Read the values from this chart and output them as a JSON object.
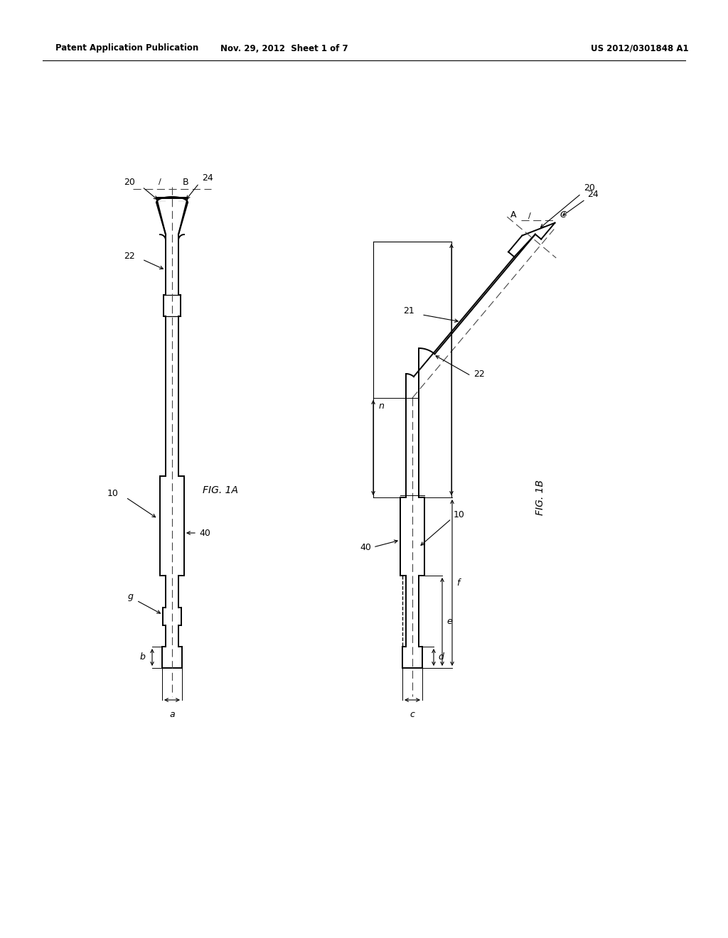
{
  "bg_color": "#ffffff",
  "header_text1": "Patent Application Publication",
  "header_text2": "Nov. 29, 2012  Sheet 1 of 7",
  "header_text3": "US 2012/0301848 A1",
  "fig1a_label": "FIG. 1A",
  "fig1b_label": "FIG. 1B",
  "line_color": "#000000",
  "dash_color": "#444444"
}
